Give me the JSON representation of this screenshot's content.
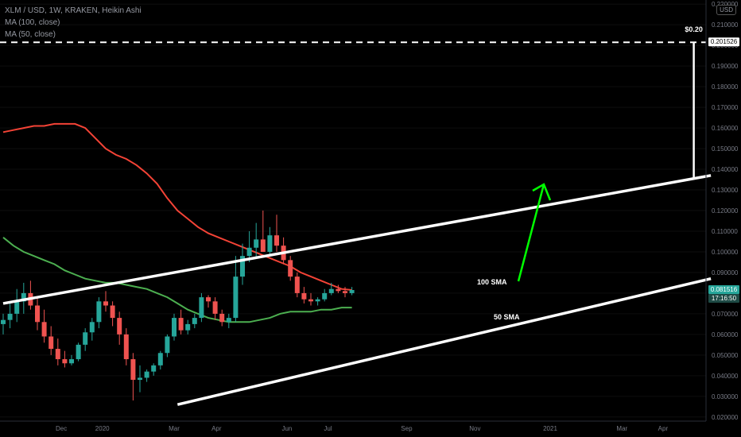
{
  "header": {
    "symbol_line": "XLM / USD, 1W, KRAKEN, Heikin Ashi",
    "indicators": [
      "MA (100, close)",
      "MA (50, close)"
    ],
    "currency_button": "USD"
  },
  "price_scale": {
    "ticks": [
      "0.220000",
      "0.210000",
      "0.200000",
      "0.190000",
      "0.180000",
      "0.170000",
      "0.160000",
      "0.150000",
      "0.140000",
      "0.130000",
      "0.120000",
      "0.110000",
      "0.100000",
      "0.090000",
      "0.080000",
      "0.070000",
      "0.060000",
      "0.050000",
      "0.040000",
      "0.030000",
      "0.020000"
    ],
    "target_tag": "0.201526",
    "current_price_tag": "0.081516",
    "countdown_tag": "17:16:50"
  },
  "time_scale": {
    "labels": [
      "Dec",
      "2020",
      "Mar",
      "Apr",
      "Jun",
      "Jul",
      "Sep",
      "Nov",
      "2021",
      "Mar",
      "Apr"
    ]
  },
  "annotations": {
    "target_label": "$0.20",
    "sma100_label": "100 SMA",
    "sma50_label": "50 SMA"
  },
  "colors": {
    "background": "#000000",
    "up_candle": "#26a69a",
    "down_candle": "#ef5350",
    "ma100": "#f44336",
    "ma50": "#4caf50",
    "channel": "#ffffff",
    "projection_arrow": "#00ff00",
    "price_tag_bg": "#26a69a",
    "countdown_bg": "#1e4a45",
    "target_tag_bg": "#ffffff"
  },
  "chart_data": {
    "type": "candlestick",
    "style": "Heikin Ashi",
    "symbol": "XLM / USD",
    "interval": "1W",
    "exchange": "KRAKEN",
    "ylim": [
      0.018,
      0.222
    ],
    "candles": [
      {
        "o": 0.065,
        "h": 0.07,
        "l": 0.06,
        "c": 0.067
      },
      {
        "o": 0.067,
        "h": 0.075,
        "l": 0.063,
        "c": 0.07
      },
      {
        "o": 0.07,
        "h": 0.082,
        "l": 0.066,
        "c": 0.076
      },
      {
        "o": 0.076,
        "h": 0.085,
        "l": 0.07,
        "c": 0.08
      },
      {
        "o": 0.08,
        "h": 0.086,
        "l": 0.072,
        "c": 0.074
      },
      {
        "o": 0.074,
        "h": 0.078,
        "l": 0.062,
        "c": 0.066
      },
      {
        "o": 0.066,
        "h": 0.072,
        "l": 0.056,
        "c": 0.059
      },
      {
        "o": 0.059,
        "h": 0.064,
        "l": 0.05,
        "c": 0.053
      },
      {
        "o": 0.053,
        "h": 0.058,
        "l": 0.045,
        "c": 0.048
      },
      {
        "o": 0.048,
        "h": 0.052,
        "l": 0.044,
        "c": 0.046
      },
      {
        "o": 0.046,
        "h": 0.05,
        "l": 0.045,
        "c": 0.048
      },
      {
        "o": 0.048,
        "h": 0.056,
        "l": 0.047,
        "c": 0.055
      },
      {
        "o": 0.055,
        "h": 0.063,
        "l": 0.052,
        "c": 0.061
      },
      {
        "o": 0.061,
        "h": 0.068,
        "l": 0.057,
        "c": 0.066
      },
      {
        "o": 0.066,
        "h": 0.078,
        "l": 0.063,
        "c": 0.076
      },
      {
        "o": 0.076,
        "h": 0.081,
        "l": 0.071,
        "c": 0.074
      },
      {
        "o": 0.074,
        "h": 0.076,
        "l": 0.064,
        "c": 0.068
      },
      {
        "o": 0.068,
        "h": 0.071,
        "l": 0.055,
        "c": 0.06
      },
      {
        "o": 0.06,
        "h": 0.063,
        "l": 0.045,
        "c": 0.048
      },
      {
        "o": 0.048,
        "h": 0.051,
        "l": 0.028,
        "c": 0.038
      },
      {
        "o": 0.038,
        "h": 0.045,
        "l": 0.032,
        "c": 0.039
      },
      {
        "o": 0.039,
        "h": 0.043,
        "l": 0.037,
        "c": 0.042
      },
      {
        "o": 0.042,
        "h": 0.046,
        "l": 0.04,
        "c": 0.045
      },
      {
        "o": 0.045,
        "h": 0.052,
        "l": 0.043,
        "c": 0.051
      },
      {
        "o": 0.051,
        "h": 0.06,
        "l": 0.049,
        "c": 0.059
      },
      {
        "o": 0.059,
        "h": 0.07,
        "l": 0.057,
        "c": 0.068
      },
      {
        "o": 0.068,
        "h": 0.072,
        "l": 0.06,
        "c": 0.062
      },
      {
        "o": 0.062,
        "h": 0.067,
        "l": 0.06,
        "c": 0.065
      },
      {
        "o": 0.065,
        "h": 0.07,
        "l": 0.063,
        "c": 0.068
      },
      {
        "o": 0.068,
        "h": 0.08,
        "l": 0.066,
        "c": 0.078
      },
      {
        "o": 0.078,
        "h": 0.079,
        "l": 0.073,
        "c": 0.076
      },
      {
        "o": 0.076,
        "h": 0.078,
        "l": 0.067,
        "c": 0.07
      },
      {
        "o": 0.07,
        "h": 0.072,
        "l": 0.064,
        "c": 0.066
      },
      {
        "o": 0.066,
        "h": 0.07,
        "l": 0.063,
        "c": 0.068
      },
      {
        "o": 0.068,
        "h": 0.098,
        "l": 0.066,
        "c": 0.088
      },
      {
        "o": 0.088,
        "h": 0.104,
        "l": 0.084,
        "c": 0.098
      },
      {
        "o": 0.098,
        "h": 0.11,
        "l": 0.095,
        "c": 0.102
      },
      {
        "o": 0.102,
        "h": 0.114,
        "l": 0.097,
        "c": 0.106
      },
      {
        "o": 0.106,
        "h": 0.12,
        "l": 0.1,
        "c": 0.1
      },
      {
        "o": 0.1,
        "h": 0.112,
        "l": 0.098,
        "c": 0.108
      },
      {
        "o": 0.108,
        "h": 0.118,
        "l": 0.1,
        "c": 0.103
      },
      {
        "o": 0.103,
        "h": 0.107,
        "l": 0.094,
        "c": 0.096
      },
      {
        "o": 0.096,
        "h": 0.098,
        "l": 0.086,
        "c": 0.088
      },
      {
        "o": 0.088,
        "h": 0.09,
        "l": 0.078,
        "c": 0.08
      },
      {
        "o": 0.08,
        "h": 0.083,
        "l": 0.075,
        "c": 0.077
      },
      {
        "o": 0.077,
        "h": 0.08,
        "l": 0.074,
        "c": 0.076
      },
      {
        "o": 0.076,
        "h": 0.078,
        "l": 0.074,
        "c": 0.077
      },
      {
        "o": 0.077,
        "h": 0.082,
        "l": 0.076,
        "c": 0.08
      },
      {
        "o": 0.08,
        "h": 0.085,
        "l": 0.079,
        "c": 0.082
      },
      {
        "o": 0.082,
        "h": 0.084,
        "l": 0.08,
        "c": 0.081
      },
      {
        "o": 0.081,
        "h": 0.083,
        "l": 0.078,
        "c": 0.08
      },
      {
        "o": 0.08,
        "h": 0.083,
        "l": 0.079,
        "c": 0.0815
      }
    ],
    "ma100": [
      0.158,
      0.159,
      0.16,
      0.161,
      0.161,
      0.162,
      0.162,
      0.162,
      0.16,
      0.155,
      0.15,
      0.147,
      0.145,
      0.142,
      0.138,
      0.133,
      0.126,
      0.12,
      0.116,
      0.112,
      0.109,
      0.107,
      0.105,
      0.103,
      0.101,
      0.099,
      0.097,
      0.095,
      0.093,
      0.09,
      0.088,
      0.086,
      0.084,
      0.082,
      0.0815
    ],
    "ma50": [
      0.107,
      0.103,
      0.1,
      0.098,
      0.096,
      0.094,
      0.091,
      0.089,
      0.087,
      0.086,
      0.085,
      0.085,
      0.084,
      0.083,
      0.082,
      0.08,
      0.078,
      0.075,
      0.072,
      0.07,
      0.068,
      0.067,
      0.066,
      0.066,
      0.066,
      0.067,
      0.068,
      0.07,
      0.071,
      0.071,
      0.071,
      0.072,
      0.072,
      0.073,
      0.073
    ],
    "channel": {
      "upper": [
        [
          0,
          0.075
        ],
        [
          52.5,
          0.0925
        ],
        [
          103.5,
          0.137
        ]
      ],
      "lower": [
        [
          25.5,
          0.026
        ],
        [
          52.5,
          0.051
        ],
        [
          103.5,
          0.087
        ]
      ]
    },
    "target": {
      "price": 0.201526,
      "label": "$0.20",
      "bar_index": 101
    }
  }
}
